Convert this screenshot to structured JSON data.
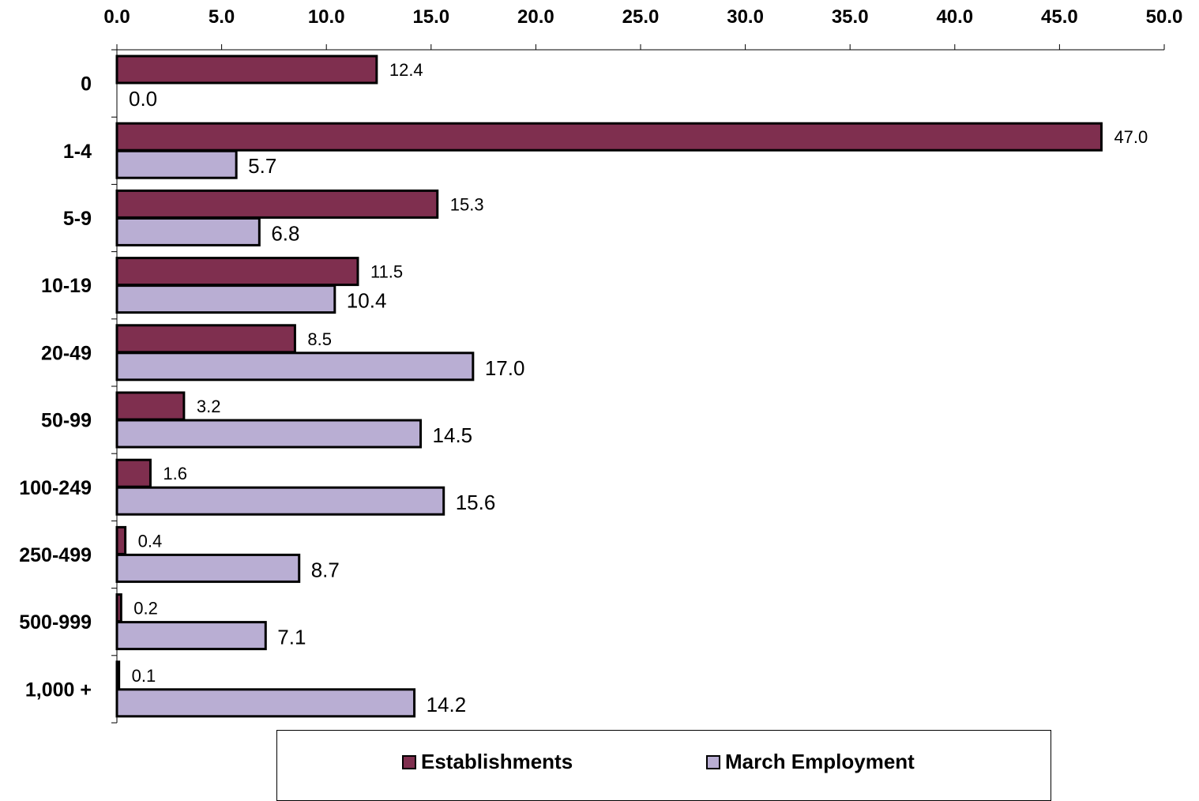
{
  "chart_data": {
    "type": "bar",
    "orientation": "horizontal",
    "categories": [
      "0",
      "1-4",
      "5-9",
      "10-19",
      "20-49",
      "50-99",
      "100-249",
      "250-499",
      "500-999",
      "1,000 +"
    ],
    "series": [
      {
        "name": "Establishments",
        "color": "#7f2f4f",
        "values": [
          12.4,
          47.0,
          15.3,
          11.5,
          8.5,
          3.2,
          1.6,
          0.4,
          0.2,
          0.1
        ],
        "labels": [
          "12.4",
          "47.0",
          "15.3",
          "11.5",
          "8.5",
          "3.2",
          "1.6",
          "0.4",
          "0.2",
          "0.1"
        ]
      },
      {
        "name": "March Employment",
        "color": "#b9aed3",
        "values": [
          0.0,
          5.7,
          6.8,
          10.4,
          17.0,
          14.5,
          15.6,
          8.7,
          7.1,
          14.2
        ],
        "labels": [
          "0.0",
          "5.7",
          "6.8",
          "10.4",
          "17.0",
          "14.5",
          "15.6",
          "8.7",
          "7.1",
          "14.2"
        ]
      }
    ],
    "xlim": [
      0,
      50
    ],
    "x_ticks": [
      "0.0",
      "5.0",
      "10.0",
      "15.0",
      "20.0",
      "25.0",
      "30.0",
      "35.0",
      "40.0",
      "45.0",
      "50.0"
    ],
    "x_axis_position": "top",
    "grid": false,
    "legend_position": "bottom",
    "title": "",
    "xlabel": "",
    "ylabel": ""
  }
}
